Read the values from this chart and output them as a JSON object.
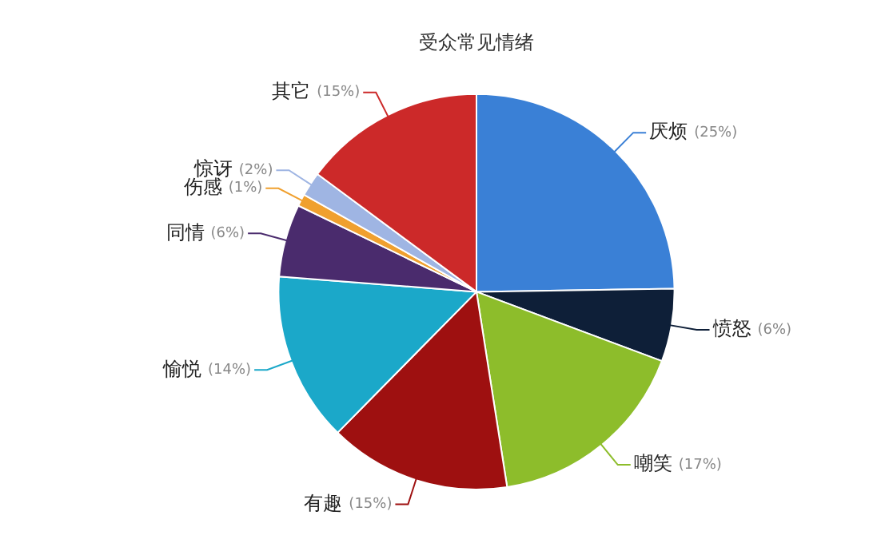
{
  "chart_data": {
    "type": "pie",
    "title": "受众常见情绪",
    "categories": [
      "厌烦",
      "愤怒",
      "嘲笑",
      "有趣",
      "愉悦",
      "同情",
      "伤感",
      "惊讶",
      "其它"
    ],
    "values": [
      25,
      6,
      17,
      15,
      14,
      6,
      1,
      2,
      15
    ],
    "value_labels": [
      "(25%)",
      "(6%)",
      "(17%)",
      "(15%)",
      "(14%)",
      "(6%)",
      "(1%)",
      "(2%)",
      "(15%)"
    ],
    "colors": [
      "#3a80d6",
      "#0e1f38",
      "#8dbd2b",
      "#9e1010",
      "#1ba8c9",
      "#4a2b6d",
      "#f0a02e",
      "#9fb5e3",
      "#cc2929"
    ],
    "legend": false
  }
}
